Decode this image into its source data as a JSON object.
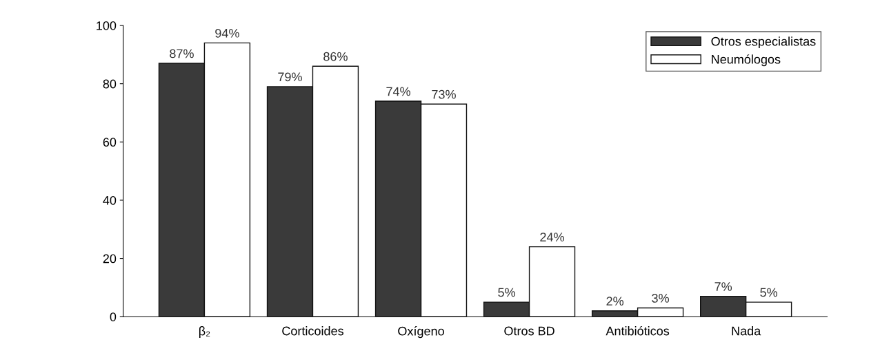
{
  "chart_data": {
    "type": "bar",
    "categories": [
      "β₂",
      "Corticoides",
      "Oxígeno",
      "Otros BD",
      "Antibióticos",
      "Nada"
    ],
    "series": [
      {
        "name": "Otros especialistas",
        "color": "#3a3a3a",
        "values": [
          87,
          79,
          74,
          5,
          2,
          7
        ],
        "value_labels": [
          "87%",
          "79%",
          "74%",
          "5%",
          "2%",
          "7%"
        ]
      },
      {
        "name": "Neumólogos",
        "color": "#ffffff",
        "values": [
          94,
          86,
          73,
          24,
          3,
          5
        ],
        "value_labels": [
          "94%",
          "86%",
          "73%",
          "24%",
          "3%",
          "5%"
        ]
      }
    ],
    "ylim": [
      0,
      100
    ],
    "yticks": [
      0,
      20,
      40,
      60,
      80,
      100
    ],
    "grid": false,
    "legend": "top right"
  }
}
